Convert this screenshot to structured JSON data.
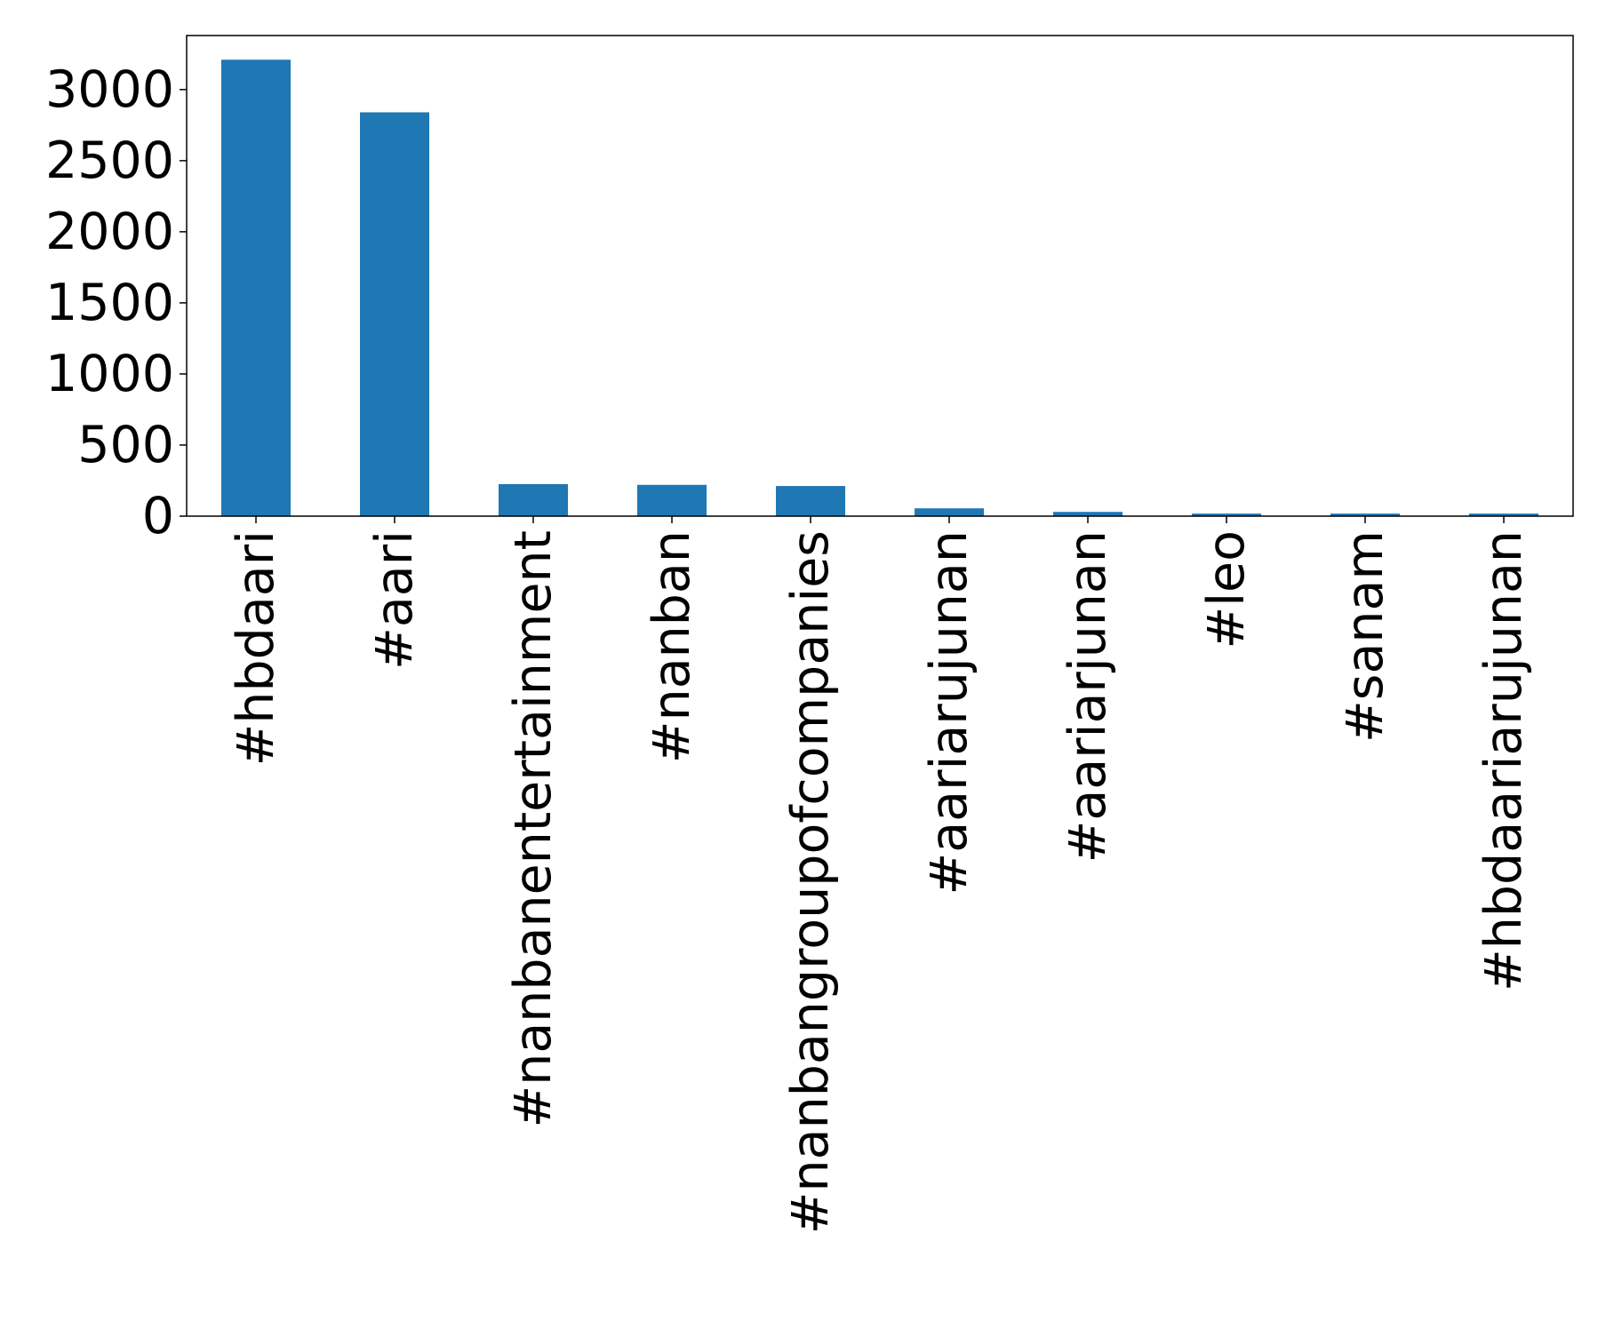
{
  "chart_data": {
    "type": "bar",
    "categories": [
      "#hbdaari",
      "#aari",
      "#nanbanentertainment",
      "#nanban",
      "#nanbangroupofcompanies",
      "#aariarujunan",
      "#aariarjunan",
      "#leo",
      "#sanam",
      "#hbdaariarujunan"
    ],
    "values": [
      3210,
      2840,
      225,
      220,
      212,
      55,
      30,
      18,
      18,
      18
    ],
    "title": "",
    "xlabel": "",
    "ylabel": "",
    "ylim": [
      0,
      3380
    ],
    "yticks": [
      0,
      500,
      1000,
      1500,
      2000,
      2500,
      3000
    ],
    "bar_color": "#1f77b4",
    "grid": false,
    "legend": "none"
  }
}
